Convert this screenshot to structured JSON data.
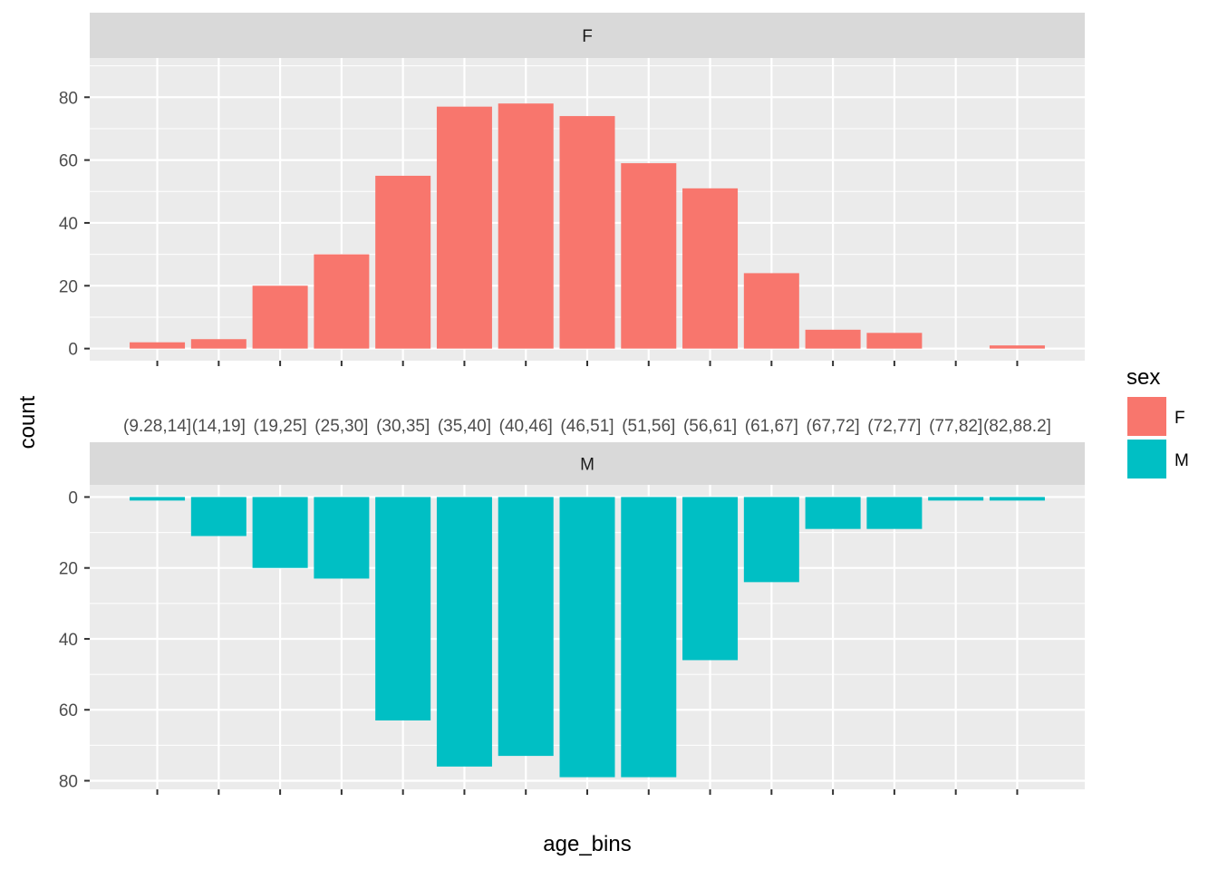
{
  "chart_data": {
    "type": "bar",
    "layout": "two facets stacked vertically; top facet F with bars upward, bottom facet M with bars downward (reversed y axis)",
    "xlabel": "age_bins",
    "ylabel": "count",
    "categories": [
      "(9.28,14]",
      "(14,19]",
      "(19,25]",
      "(25,30]",
      "(30,35]",
      "(35,40]",
      "(40,46]",
      "(46,51]",
      "(51,56]",
      "(56,61]",
      "(61,67]",
      "(67,72]",
      "(72,77]",
      "(77,82]",
      "(82,88.2]"
    ],
    "x_tick_labels": [
      "(9.28,14]",
      "(14,19]",
      "(19,25]",
      "(25,30]",
      "(30,35]",
      "(35,40]",
      "(40,46]",
      "(46,51]",
      "(51,56]",
      "(56,61]",
      "(61,67]",
      "(67,72]",
      "(72,77]",
      "(77,82]",
      "(82,88.2]"
    ],
    "facets": [
      {
        "strip": "F",
        "color": "#F8766D",
        "y_direction": "up",
        "ylim": [
          0,
          92
        ],
        "yticks": [
          0,
          20,
          40,
          60,
          80
        ],
        "ytick_labels": [
          "0",
          "20",
          "40",
          "60",
          "80"
        ],
        "x_slots": [
          1,
          2,
          3,
          4,
          5,
          6,
          7,
          8,
          9,
          10,
          11,
          12,
          13,
          15
        ],
        "values": [
          2,
          3,
          20,
          30,
          55,
          77,
          78,
          74,
          59,
          51,
          24,
          6,
          5,
          1
        ]
      },
      {
        "strip": "M",
        "color": "#00BFC4",
        "y_direction": "down",
        "ylim": [
          0,
          82
        ],
        "yticks": [
          0,
          20,
          40,
          60,
          80
        ],
        "ytick_labels": [
          "0",
          "20",
          "40",
          "60",
          "80"
        ],
        "x_slots": [
          1,
          2,
          3,
          4,
          5,
          6,
          7,
          8,
          9,
          10,
          11,
          12,
          13,
          14,
          15
        ],
        "values": [
          1,
          11,
          20,
          23,
          63,
          76,
          73,
          79,
          79,
          46,
          24,
          9,
          9,
          1,
          1
        ]
      }
    ],
    "legend": {
      "title": "sex",
      "position": "right",
      "entries": [
        {
          "label": "F",
          "color": "#F8766D"
        },
        {
          "label": "M",
          "color": "#00BFC4"
        }
      ]
    },
    "grid": true,
    "panel_background": "#EBEBEB",
    "strip_background": "#D9D9D9",
    "grid_color": "#FFFFFF"
  }
}
